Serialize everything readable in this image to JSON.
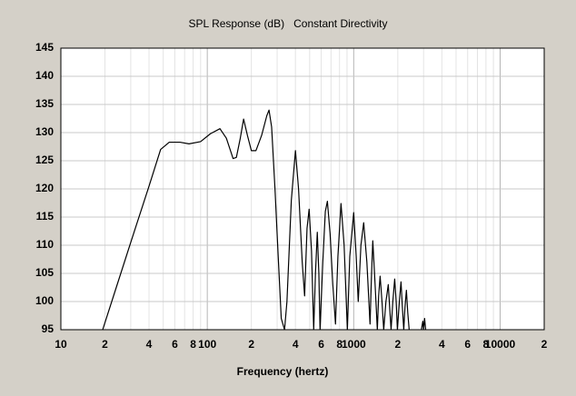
{
  "chart_data": {
    "type": "line",
    "title": "SPL Response (dB)   Constant Directivity",
    "x_label": "Frequency (hertz)",
    "log_x": true,
    "grid": true,
    "color": "#000000",
    "xlim": [
      10,
      20000
    ],
    "ylim": [
      95,
      145
    ],
    "yticks": [
      95,
      100,
      105,
      110,
      115,
      120,
      125,
      130,
      135,
      140,
      145
    ],
    "xticks": [
      10,
      {
        "value": 20,
        "label": "2"
      },
      {
        "value": 40,
        "label": "4"
      },
      {
        "value": 60,
        "label": "6"
      },
      {
        "value": 80,
        "label": "8"
      },
      100,
      {
        "value": 200,
        "label": "2"
      },
      {
        "value": 400,
        "label": "4"
      },
      {
        "value": 600,
        "label": "6"
      },
      {
        "value": 800,
        "label": "8"
      },
      1000,
      {
        "value": 2000,
        "label": "2"
      },
      {
        "value": 4000,
        "label": "4"
      },
      {
        "value": 6000,
        "label": "6"
      },
      {
        "value": 8000,
        "label": "8"
      },
      10000,
      {
        "value": 20000,
        "label": "2"
      }
    ],
    "x_minor_ticks": [
      30,
      50,
      70,
      90,
      300,
      500,
      700,
      900,
      3000,
      5000,
      7000,
      9000
    ],
    "x": [
      19.3,
      30,
      40,
      48,
      55,
      65,
      75,
      90,
      105,
      122,
      135,
      150,
      158,
      168,
      177,
      188,
      200,
      215,
      235,
      255,
      264,
      275,
      290,
      305,
      320,
      337,
      350,
      375,
      400,
      420,
      445,
      462,
      480,
      496,
      515,
      533,
      548,
      564,
      578,
      589,
      615,
      640,
      661,
      690,
      720,
      751,
      780,
      819,
      860,
      905,
      940,
      1000,
      1040,
      1074,
      1120,
      1170,
      1230,
      1293,
      1320,
      1350,
      1400,
      1450,
      1480,
      1515,
      1560,
      1603,
      1660,
      1722,
      1760,
      1800,
      1850,
      1905,
      1950,
      1988,
      2050,
      2104,
      2150,
      2197,
      2240,
      2290,
      2340,
      2392,
      2600,
      2900,
      2965,
      3000,
      3048,
      3100
    ],
    "values": [
      95,
      110.5,
      120.5,
      127,
      128.3,
      128.3,
      128,
      128.4,
      129.8,
      130.7,
      129,
      125.4,
      125.6,
      129,
      132.4,
      129.5,
      126.8,
      126.8,
      129.5,
      133,
      134,
      131,
      120,
      108,
      97,
      95,
      100,
      118,
      126.8,
      120,
      107,
      101,
      113,
      116.4,
      109,
      95,
      105,
      112.3,
      105,
      95,
      107,
      116,
      117.8,
      112,
      103,
      96,
      108,
      117.4,
      110,
      95,
      108,
      115.8,
      108,
      100,
      110,
      114,
      107,
      96,
      104,
      110.8,
      103,
      95,
      101,
      104.5,
      100,
      95,
      100,
      103,
      99,
      95,
      100,
      104,
      100,
      95,
      100,
      103.5,
      99,
      95,
      99,
      102,
      98,
      95,
      null,
      95,
      96.5,
      95,
      97,
      95
    ]
  }
}
